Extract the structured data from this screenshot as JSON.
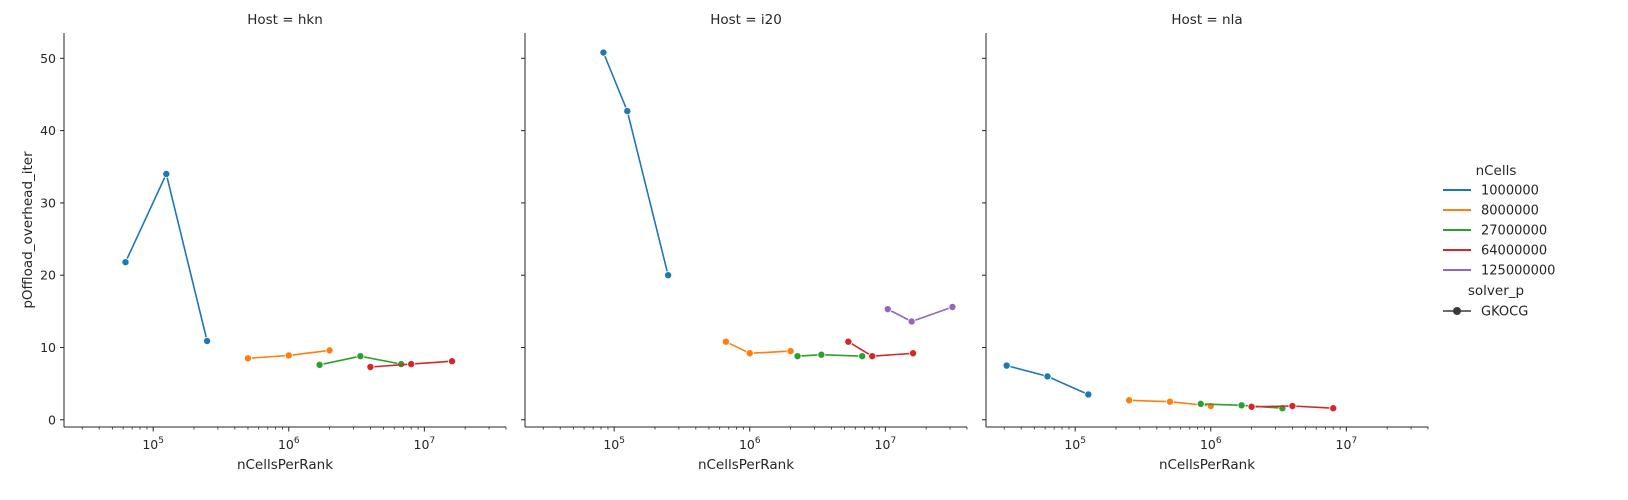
{
  "chart_data": {
    "type": "line",
    "x_scale": "log",
    "y_scale": "linear",
    "xlabel": "nCellsPerRank",
    "ylabel": "pOffload_overhead_iter",
    "xlim": [
      22000,
      40000000
    ],
    "ylim": [
      -1,
      53.5
    ],
    "y_ticks": [
      0,
      10,
      20,
      30,
      40,
      50
    ],
    "x_ticks": [
      {
        "value": 100000,
        "base": "10",
        "exp": "5"
      },
      {
        "value": 1000000,
        "base": "10",
        "exp": "6"
      },
      {
        "value": 10000000,
        "base": "10",
        "exp": "7"
      }
    ],
    "grid": false,
    "legend": {
      "title": "nCells",
      "placement": "right",
      "entries": [
        {
          "label": "1000000",
          "color": "#1f77b4"
        },
        {
          "label": "8000000",
          "color": "#ff7f0e"
        },
        {
          "label": "27000000",
          "color": "#2ca02c"
        },
        {
          "label": "64000000",
          "color": "#d62728"
        },
        {
          "label": "125000000",
          "color": "#9467bd"
        }
      ],
      "style_title": "solver_p",
      "style_entries": [
        {
          "label": "GKOCG",
          "marker": "circle"
        }
      ]
    },
    "panels": [
      {
        "title": "Host = hkn",
        "series": [
          {
            "name": "1000000",
            "x": [
              62500,
              125000,
              250000
            ],
            "y": [
              21.8,
              34.0,
              10.9
            ]
          },
          {
            "name": "8000000",
            "x": [
              500000,
              1000000,
              2000000
            ],
            "y": [
              8.5,
              8.9,
              9.6
            ]
          },
          {
            "name": "27000000",
            "x": [
              1687500,
              3375000,
              6750000
            ],
            "y": [
              7.6,
              8.8,
              7.7
            ]
          },
          {
            "name": "64000000",
            "x": [
              4000000,
              8000000,
              16000000
            ],
            "y": [
              7.3,
              7.7,
              8.1
            ]
          }
        ]
      },
      {
        "title": "Host = i20",
        "series": [
          {
            "name": "1000000",
            "x": [
              83333,
              125000,
              250000
            ],
            "y": [
              50.8,
              42.7,
              20.0
            ]
          },
          {
            "name": "8000000",
            "x": [
              666667,
              1000000,
              2000000
            ],
            "y": [
              10.8,
              9.2,
              9.5
            ]
          },
          {
            "name": "27000000",
            "x": [
              2250000,
              3375000,
              6750000
            ],
            "y": [
              8.8,
              9.0,
              8.8
            ]
          },
          {
            "name": "64000000",
            "x": [
              5333333,
              8000000,
              16000000
            ],
            "y": [
              10.8,
              8.8,
              9.2
            ]
          },
          {
            "name": "125000000",
            "x": [
              10416667,
              15625000,
              31250000
            ],
            "y": [
              15.3,
              13.6,
              15.6
            ]
          }
        ]
      },
      {
        "title": "Host = nla",
        "series": [
          {
            "name": "1000000",
            "x": [
              31250,
              62500,
              125000
            ],
            "y": [
              7.5,
              6.0,
              3.5
            ]
          },
          {
            "name": "8000000",
            "x": [
              250000,
              500000,
              1000000
            ],
            "y": [
              2.7,
              2.5,
              1.9
            ]
          },
          {
            "name": "27000000",
            "x": [
              843750,
              1687500,
              3375000
            ],
            "y": [
              2.2,
              2.0,
              1.6
            ]
          },
          {
            "name": "64000000",
            "x": [
              2000000,
              4000000,
              8000000
            ],
            "y": [
              1.8,
              1.9,
              1.6
            ]
          }
        ]
      }
    ]
  }
}
